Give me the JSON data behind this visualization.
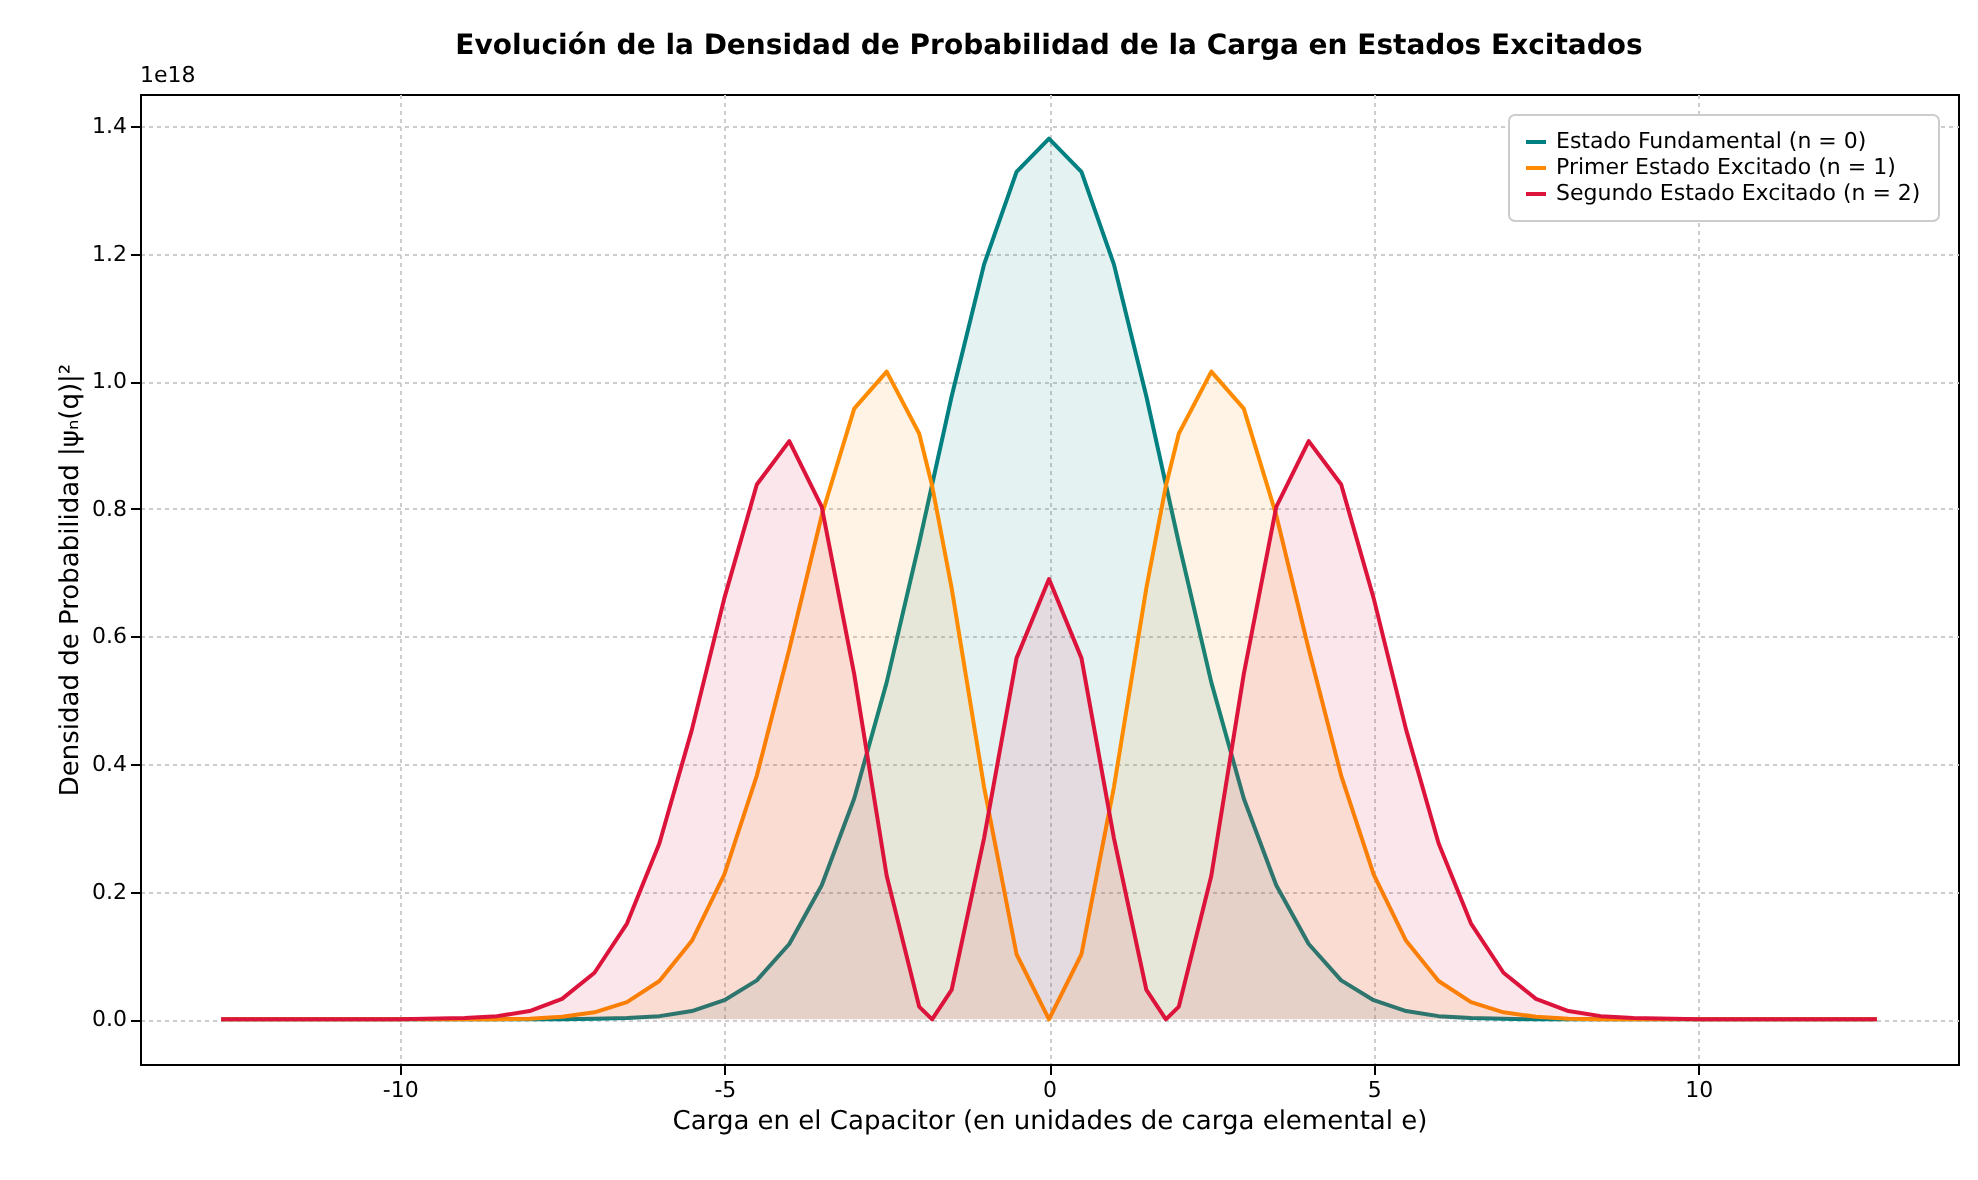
{
  "chart_data": {
    "type": "area",
    "title": "Evolución de la Densidad de Probabilidad de la Carga en Estados Excitados",
    "xlabel": "Carga en el Capacitor (en unidades de carga elemental e)",
    "ylabel": "Densidad de Probabilidad |ψₙ(q)|²",
    "annotations": [
      "1e18"
    ],
    "x": [
      -12.75,
      -11,
      -10,
      -9,
      -8.5,
      -8,
      -7.5,
      -7,
      -6.5,
      -6,
      -5.5,
      -5,
      -4.5,
      -4,
      -3.5,
      -3,
      -2.5,
      -2,
      -1.8,
      -1.5,
      -1,
      -0.5,
      0,
      0.5,
      1,
      1.5,
      1.8,
      2,
      2.5,
      3,
      3.5,
      4,
      4.5,
      5,
      5.5,
      6,
      6.5,
      7,
      7.5,
      8,
      8.5,
      9,
      10,
      11,
      12.75
    ],
    "series": [
      {
        "name": "Estado Fundamental (n = 0)",
        "color": "#008080",
        "values": [
          0,
          0,
          0,
          0,
          0,
          0,
          0,
          0.001,
          0.002,
          0.005,
          0.013,
          0.03,
          0.061,
          0.118,
          0.21,
          0.346,
          0.528,
          0.746,
          0.838,
          0.976,
          1.183,
          1.328,
          1.38,
          1.328,
          1.183,
          0.976,
          0.838,
          0.746,
          0.528,
          0.346,
          0.21,
          0.118,
          0.061,
          0.03,
          0.013,
          0.005,
          0.002,
          0.001,
          0,
          0,
          0,
          0,
          0,
          0,
          0
        ]
      },
      {
        "name": "Primer Estado Excitado (n = 1)",
        "color": "#ff8c00",
        "values": [
          0,
          0,
          0,
          0,
          0,
          0.001,
          0.004,
          0.011,
          0.027,
          0.06,
          0.123,
          0.227,
          0.382,
          0.58,
          0.79,
          0.957,
          1.015,
          0.918,
          0.836,
          0.676,
          0.364,
          0.102,
          0,
          0.102,
          0.364,
          0.676,
          0.836,
          0.918,
          1.015,
          0.957,
          0.79,
          0.58,
          0.382,
          0.227,
          0.123,
          0.06,
          0.027,
          0.011,
          0.004,
          0.001,
          0,
          0,
          0,
          0,
          0
        ]
      },
      {
        "name": "Segundo Estado Excitado (n = 2)",
        "color": "#dc143c",
        "values": [
          0,
          0,
          0,
          0.002,
          0.005,
          0.013,
          0.032,
          0.073,
          0.15,
          0.276,
          0.454,
          0.66,
          0.838,
          0.906,
          0.803,
          0.541,
          0.225,
          0.02,
          0,
          0.046,
          0.284,
          0.566,
          0.69,
          0.566,
          0.284,
          0.046,
          0,
          0.02,
          0.225,
          0.541,
          0.803,
          0.906,
          0.838,
          0.66,
          0.454,
          0.276,
          0.15,
          0.073,
          0.032,
          0.013,
          0.005,
          0.002,
          0,
          0,
          0
        ]
      }
    ],
    "xlim": [
      -14,
      14
    ],
    "xticks": [
      -10,
      -5,
      0,
      5,
      10
    ],
    "ylim": [
      -0.07,
      1.45
    ],
    "yticks": [
      {
        "value": 0,
        "label": "0.0"
      },
      {
        "value": 0.2,
        "label": "0.2"
      },
      {
        "value": 0.4,
        "label": "0.4"
      },
      {
        "value": 0.6,
        "label": "0.6"
      },
      {
        "value": 0.8,
        "label": "0.8"
      },
      {
        "value": 1.0,
        "label": "1.0"
      },
      {
        "value": 1.2,
        "label": "1.2"
      },
      {
        "value": 1.4,
        "label": "1.4"
      }
    ],
    "grid": true,
    "legend": "top right"
  }
}
